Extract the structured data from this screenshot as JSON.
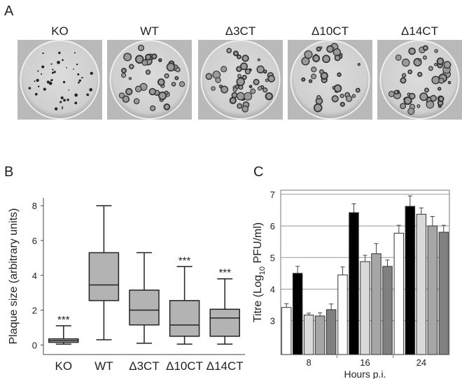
{
  "panel_labels": [
    "A",
    "B",
    "C"
  ],
  "panel_a": {
    "plates": [
      "KO",
      "WT",
      "Δ3CT",
      "Δ10CT",
      "Δ14CT"
    ]
  },
  "chart_data": [
    {
      "type": "box",
      "y_label": "Plaque size (arbitrary units)",
      "categories": [
        "KO",
        "WT",
        "Δ3CT",
        "Δ10CT",
        "Δ14CT"
      ],
      "min": [
        0.05,
        0.3,
        0.1,
        0.05,
        0.05
      ],
      "q1": [
        0.15,
        2.55,
        1.15,
        0.5,
        0.5
      ],
      "median": [
        0.25,
        3.45,
        2.0,
        1.15,
        1.55
      ],
      "q3": [
        0.35,
        5.3,
        3.15,
        2.55,
        2.05
      ],
      "max": [
        1.1,
        8.0,
        5.3,
        4.5,
        3.8
      ],
      "annotations": [
        "***",
        null,
        null,
        "***",
        "***"
      ],
      "color": "#b3b3b3",
      "ylim": [
        -0.55,
        8.45
      ],
      "yticks": [
        0,
        2,
        4,
        6,
        8
      ]
    },
    {
      "type": "bar",
      "x_label": "Hours p.i.",
      "y_label": {
        "text": "Titre (Log",
        "subscript": "10",
        "rest": " PFU/ml)"
      },
      "categories": [
        "8",
        "16",
        "24"
      ],
      "series": [
        {
          "color": "#ffffff",
          "values": [
            3.42,
            4.45,
            5.77
          ],
          "errors": [
            0.12,
            0.25,
            0.25
          ]
        },
        {
          "color": "#000000",
          "values": [
            4.5,
            6.42,
            6.62
          ],
          "errors": [
            0.22,
            0.28,
            0.33
          ]
        },
        {
          "color": "#d9d9d9",
          "values": [
            3.18,
            4.87,
            6.37
          ],
          "errors": [
            0.06,
            0.2,
            0.2
          ]
        },
        {
          "color": "#a6a6a6",
          "values": [
            3.15,
            5.12,
            6.0
          ],
          "errors": [
            0.1,
            0.32,
            0.3
          ]
        },
        {
          "color": "#808080",
          "values": [
            3.35,
            4.72,
            5.8
          ],
          "errors": [
            0.18,
            0.2,
            0.22
          ]
        }
      ],
      "ylim": [
        1.93,
        7.13
      ],
      "yticks": [
        3,
        4,
        5,
        6,
        7
      ],
      "grid": true
    }
  ]
}
